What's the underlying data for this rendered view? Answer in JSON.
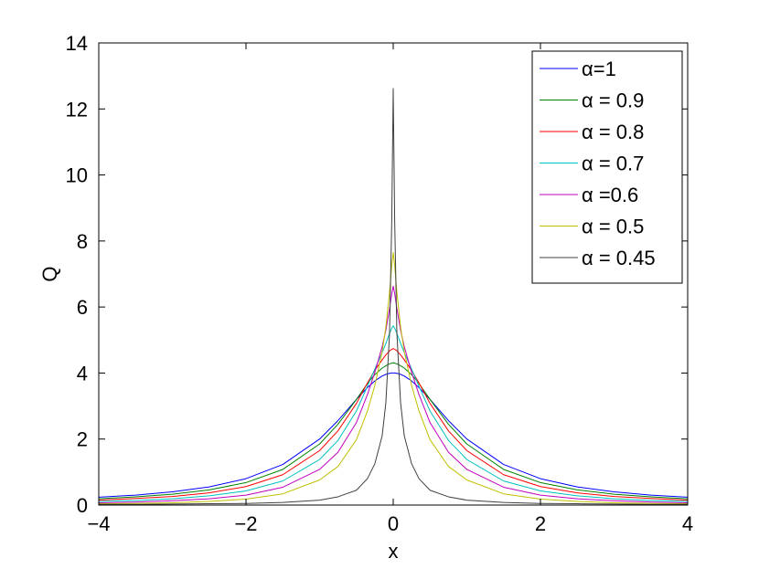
{
  "chart_data": {
    "type": "line",
    "title": "",
    "xlabel": "x",
    "ylabel": "Q",
    "xlim": [
      -4,
      4
    ],
    "ylim": [
      0,
      14
    ],
    "x_ticks": [
      -4,
      -2,
      0,
      2,
      4
    ],
    "x_tick_labels": [
      "−4",
      "−2",
      "0",
      "2",
      "4"
    ],
    "y_ticks": [
      0,
      2,
      4,
      6,
      8,
      10,
      12,
      14
    ],
    "y_tick_labels": [
      "0",
      "2",
      "4",
      "6",
      "8",
      "10",
      "12",
      "14"
    ],
    "grid": false,
    "legend_position": "top-right",
    "x": [
      -4,
      -3.5,
      -3,
      -2.5,
      -2,
      -1.5,
      -1,
      -0.75,
      -0.5,
      -0.35,
      -0.25,
      -0.15,
      -0.1,
      -0.05,
      -0.02,
      0,
      0.02,
      0.05,
      0.1,
      0.15,
      0.25,
      0.35,
      0.5,
      0.75,
      1,
      1.5,
      2,
      2.5,
      3,
      3.5,
      4
    ],
    "series": [
      {
        "name": "α=1",
        "color": "#0000ff",
        "values": [
          0.24,
          0.3,
          0.4,
          0.55,
          0.8,
          1.23,
          2.0,
          2.56,
          3.2,
          3.56,
          3.76,
          3.91,
          3.96,
          3.99,
          4.0,
          4.0,
          4.0,
          3.99,
          3.96,
          3.91,
          3.76,
          3.56,
          3.2,
          2.56,
          2.0,
          1.23,
          0.8,
          0.55,
          0.4,
          0.3,
          0.24
        ]
      },
      {
        "name": "α = 0.9",
        "color": "#008000",
        "values": [
          0.19,
          0.25,
          0.33,
          0.46,
          0.68,
          1.08,
          1.85,
          2.45,
          3.2,
          3.68,
          3.95,
          4.15,
          4.22,
          4.28,
          4.3,
          4.31,
          4.3,
          4.28,
          4.22,
          4.15,
          3.95,
          3.68,
          3.2,
          2.45,
          1.85,
          1.08,
          0.68,
          0.46,
          0.33,
          0.25,
          0.19
        ]
      },
      {
        "name": "α = 0.8",
        "color": "#ff0000",
        "values": [
          0.15,
          0.2,
          0.26,
          0.37,
          0.56,
          0.92,
          1.65,
          2.25,
          3.08,
          3.7,
          4.08,
          4.4,
          4.55,
          4.67,
          4.72,
          4.74,
          4.72,
          4.67,
          4.55,
          4.4,
          4.08,
          3.7,
          3.08,
          2.25,
          1.65,
          0.92,
          0.56,
          0.37,
          0.26,
          0.2,
          0.15
        ]
      },
      {
        "name": "α = 0.7",
        "color": "#00bfbf",
        "values": [
          0.11,
          0.14,
          0.19,
          0.28,
          0.43,
          0.73,
          1.38,
          1.96,
          2.85,
          3.6,
          4.12,
          4.62,
          4.9,
          5.2,
          5.36,
          5.43,
          5.36,
          5.2,
          4.9,
          4.62,
          4.12,
          3.6,
          2.85,
          1.96,
          1.38,
          0.73,
          0.43,
          0.28,
          0.19,
          0.14,
          0.11
        ]
      },
      {
        "name": "α =0.6",
        "color": "#bf00bf",
        "values": [
          0.07,
          0.09,
          0.13,
          0.19,
          0.3,
          0.54,
          1.08,
          1.6,
          2.5,
          3.35,
          4.02,
          4.8,
          5.3,
          5.95,
          6.4,
          6.63,
          6.4,
          5.95,
          5.3,
          4.8,
          4.02,
          3.35,
          2.5,
          1.6,
          1.08,
          0.54,
          0.3,
          0.19,
          0.13,
          0.09,
          0.07
        ]
      },
      {
        "name": "α = 0.5",
        "color": "#bfbf00",
        "values": [
          0.04,
          0.05,
          0.07,
          0.11,
          0.18,
          0.34,
          0.76,
          1.17,
          1.98,
          2.85,
          3.62,
          4.65,
          5.4,
          6.45,
          7.25,
          7.65,
          7.25,
          6.45,
          5.4,
          4.65,
          3.62,
          2.85,
          1.98,
          1.17,
          0.76,
          0.34,
          0.18,
          0.11,
          0.07,
          0.05,
          0.04
        ]
      },
      {
        "name": "α = 0.45",
        "color": "#404040",
        "values": [
          0.02,
          0.02,
          0.03,
          0.04,
          0.05,
          0.08,
          0.15,
          0.25,
          0.45,
          0.8,
          1.25,
          2.1,
          3.1,
          5.2,
          8.6,
          12.62,
          8.6,
          5.2,
          3.1,
          2.1,
          1.25,
          0.8,
          0.45,
          0.25,
          0.15,
          0.08,
          0.05,
          0.04,
          0.03,
          0.02,
          0.02
        ]
      }
    ]
  }
}
